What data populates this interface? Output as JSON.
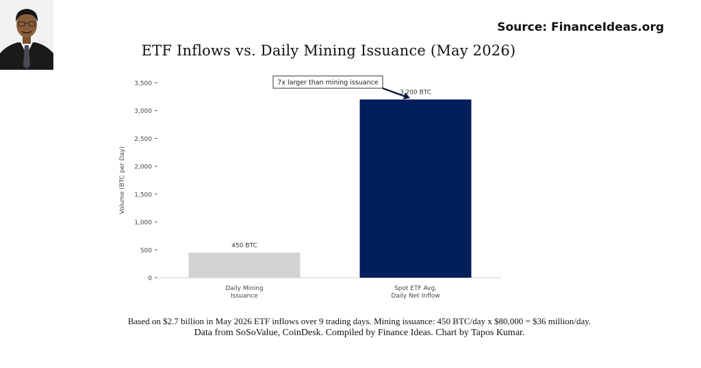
{
  "header": {
    "source": "Source: FinanceIdeas.org",
    "title": "ETF Inflows vs. Daily Mining Issuance (May 2026)"
  },
  "chart_data": {
    "type": "bar",
    "categories": [
      "Daily Mining\nIssuance",
      "Spot ETF Avg.\nDaily Net Inflow"
    ],
    "values": [
      450,
      3200
    ],
    "data_labels": [
      "450 BTC",
      "3,200 BTC"
    ],
    "bar_colors": [
      "#d3d3d3",
      "#021f5c"
    ],
    "ylabel": "Volume (BTC per Day)",
    "ylim": [
      0,
      3500
    ],
    "yticks": [
      0,
      500,
      1000,
      1500,
      2000,
      2500,
      3000,
      3500
    ],
    "ytick_labels": [
      "0",
      "500",
      "1,000",
      "1,500",
      "2,000",
      "2,500",
      "3,000",
      "3,500"
    ],
    "grid": false,
    "annotation": {
      "text": "7x larger than mining issuance",
      "target_category_index": 1,
      "target_value": 3200
    }
  },
  "footnote": {
    "line1": "Based on $2.7 billion in May 2026 ETF inflows over 9 trading days. Mining issuance: 450 BTC/day x $80,000 = $36 million/day.",
    "line2": "Data from SoSoValue, CoinDesk. Compiled by Finance Ideas. Chart by Tapos Kumar."
  }
}
